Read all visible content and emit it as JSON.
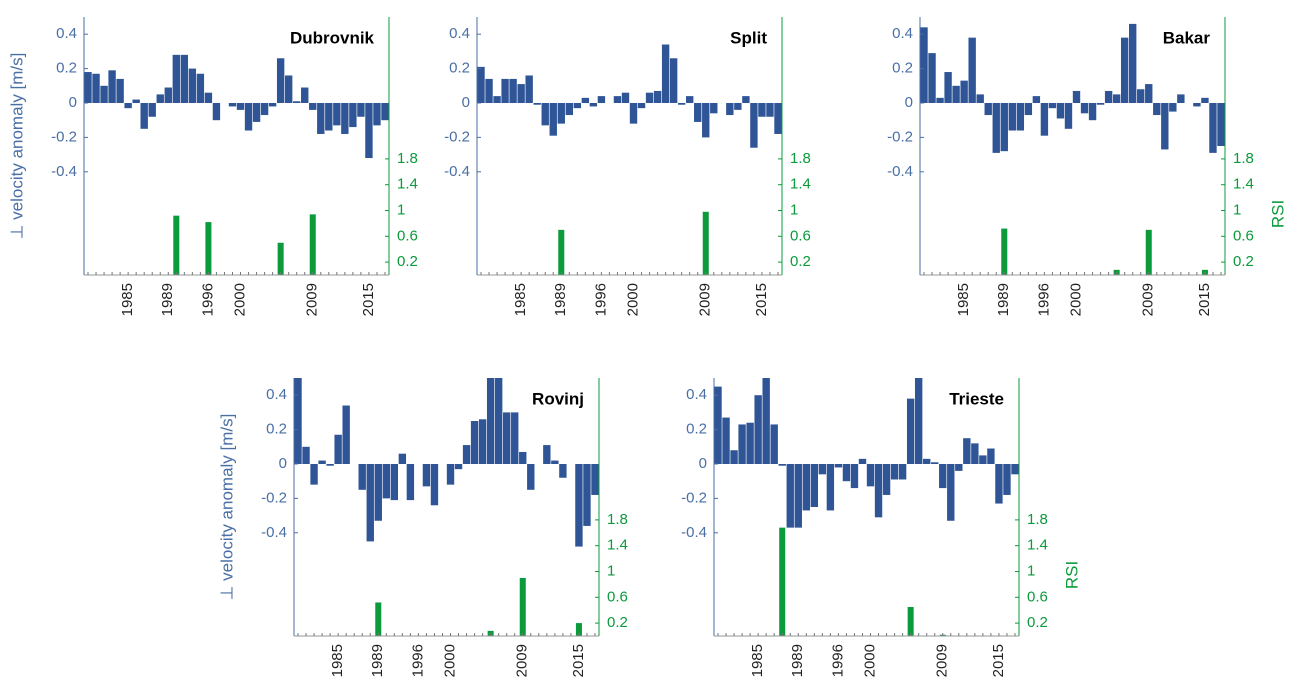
{
  "chart_data": [
    {
      "type": "bar",
      "title": "Dubrovnik",
      "ylabel": "⊥ velocity anomaly [m/s]",
      "categories": [
        null,
        null,
        null,
        null,
        null,
        "1985",
        null,
        null,
        null,
        null,
        "1989",
        null,
        null,
        null,
        null,
        "1996",
        null,
        null,
        null,
        "2000",
        null,
        null,
        null,
        null,
        null,
        null,
        null,
        null,
        "2009",
        null,
        null,
        null,
        null,
        null,
        null,
        "2015",
        null,
        null
      ],
      "series": [
        {
          "color": "#2f5597",
          "values": [
            0.18,
            0.17,
            0.1,
            0.19,
            0.14,
            -0.03,
            0.02,
            -0.15,
            -0.08,
            0.05,
            0.09,
            0.28,
            0.28,
            0.2,
            0.17,
            0.06,
            -0.1,
            0,
            -0.02,
            -0.04,
            -0.16,
            -0.11,
            -0.07,
            -0.02,
            0.26,
            0.16,
            0.01,
            0.09,
            -0.04,
            -0.18,
            -0.16,
            -0.13,
            -0.18,
            -0.14,
            -0.08,
            -0.32,
            -0.13,
            -0.1
          ]
        },
        {
          "color": "#0b9a3c",
          "axis": "y2",
          "values": [
            null,
            null,
            null,
            null,
            null,
            null,
            null,
            null,
            null,
            null,
            null,
            0.92,
            null,
            null,
            null,
            0.82,
            null,
            null,
            null,
            null,
            null,
            null,
            null,
            null,
            0.5,
            null,
            null,
            null,
            0.94,
            null,
            null,
            null,
            null,
            null,
            null,
            null,
            null,
            null
          ]
        }
      ],
      "ylim": [
        -1,
        0.5
      ],
      "yticks": [
        -0.4,
        -0.2,
        0,
        0.2,
        0.4
      ],
      "y2lim": [
        0,
        4
      ],
      "y2ticks": [
        0.2,
        0.6,
        1,
        1.4,
        1.8
      ]
    },
    {
      "type": "bar",
      "title": "Split",
      "categories": [
        null,
        null,
        null,
        null,
        null,
        "1985",
        null,
        null,
        null,
        null,
        "1989",
        null,
        null,
        null,
        null,
        "1996",
        null,
        null,
        null,
        "2000",
        null,
        null,
        null,
        null,
        null,
        null,
        null,
        null,
        "2009",
        null,
        null,
        null,
        null,
        null,
        null,
        "2015",
        null,
        null
      ],
      "series": [
        {
          "color": "#2f5597",
          "values": [
            0.21,
            0.14,
            0.04,
            0.14,
            0.14,
            0.11,
            0.16,
            -0.01,
            -0.13,
            -0.19,
            -0.12,
            -0.07,
            -0.03,
            0.03,
            -0.02,
            0.04,
            0,
            0.04,
            0.06,
            -0.12,
            -0.03,
            0.06,
            0.07,
            0.34,
            0.26,
            -0.01,
            0.04,
            -0.11,
            -0.2,
            -0.06,
            0,
            -0.07,
            -0.04,
            0.04,
            -0.26,
            -0.08,
            -0.08,
            -0.18
          ]
        },
        {
          "color": "#0b9a3c",
          "axis": "y2",
          "values": [
            null,
            null,
            null,
            null,
            null,
            null,
            null,
            null,
            null,
            null,
            0.7,
            null,
            null,
            null,
            null,
            null,
            null,
            null,
            null,
            null,
            null,
            null,
            null,
            null,
            null,
            null,
            null,
            null,
            0.98,
            null,
            null,
            null,
            null,
            null,
            null,
            null,
            null,
            null
          ]
        }
      ],
      "ylim": [
        -1,
        0.5
      ],
      "yticks": [
        -0.4,
        -0.2,
        0,
        0.2,
        0.4
      ],
      "y2lim": [
        0,
        4
      ],
      "y2ticks": [
        0.2,
        0.6,
        1,
        1.4,
        1.8
      ]
    },
    {
      "type": "bar",
      "title": "Bakar",
      "y2label": "RSI",
      "categories": [
        null,
        null,
        null,
        null,
        null,
        "1985",
        null,
        null,
        null,
        null,
        "1989",
        null,
        null,
        null,
        null,
        "1996",
        null,
        null,
        null,
        "2000",
        null,
        null,
        null,
        null,
        null,
        null,
        null,
        null,
        "2009",
        null,
        null,
        null,
        null,
        null,
        null,
        "2015",
        null,
        null
      ],
      "series": [
        {
          "color": "#2f5597",
          "values": [
            0.44,
            0.29,
            0.03,
            0.18,
            0.1,
            0.13,
            0.38,
            0.05,
            -0.07,
            -0.29,
            -0.28,
            -0.16,
            -0.16,
            -0.07,
            0.04,
            -0.19,
            -0.03,
            -0.09,
            -0.15,
            0.07,
            -0.06,
            -0.1,
            -0.01,
            0.07,
            0.05,
            0.38,
            0.46,
            0.08,
            0.11,
            -0.07,
            -0.27,
            -0.05,
            0.05,
            0,
            -0.02,
            0.03,
            -0.29,
            -0.25
          ]
        },
        {
          "color": "#0b9a3c",
          "axis": "y2",
          "values": [
            null,
            null,
            null,
            null,
            null,
            null,
            null,
            null,
            null,
            null,
            0.72,
            null,
            null,
            null,
            null,
            null,
            null,
            null,
            null,
            null,
            null,
            null,
            null,
            null,
            0.08,
            null,
            null,
            null,
            0.7,
            null,
            null,
            null,
            null,
            null,
            null,
            0.08,
            null,
            null
          ]
        }
      ],
      "ylim": [
        -1,
        0.5
      ],
      "yticks": [
        -0.4,
        -0.2,
        0,
        0.2,
        0.4
      ],
      "y2lim": [
        0,
        4
      ],
      "y2ticks": [
        0.2,
        0.6,
        1,
        1.4,
        1.8
      ]
    },
    {
      "type": "bar",
      "title": "Rovinj",
      "ylabel": "⊥ velocity anomaly [m/s]",
      "categories": [
        null,
        null,
        null,
        null,
        null,
        "1985",
        null,
        null,
        null,
        null,
        "1989",
        null,
        null,
        null,
        null,
        "1996",
        null,
        null,
        null,
        "2000",
        null,
        null,
        null,
        null,
        null,
        null,
        null,
        null,
        "2009",
        null,
        null,
        null,
        null,
        null,
        null,
        "2015",
        null,
        null
      ],
      "series": [
        {
          "color": "#2f5597",
          "values": [
            0.5,
            0.1,
            -0.12,
            0.02,
            -0.01,
            0.17,
            0.34,
            0,
            -0.15,
            -0.45,
            -0.33,
            -0.2,
            -0.21,
            0.06,
            -0.21,
            0,
            -0.13,
            -0.24,
            0,
            -0.12,
            -0.03,
            0.11,
            0.25,
            0.26,
            0.5,
            0.5,
            0.3,
            0.3,
            0.07,
            -0.15,
            0,
            0.11,
            0.02,
            -0.08,
            0,
            -0.48,
            -0.36,
            -0.18
          ]
        },
        {
          "color": "#0b9a3c",
          "axis": "y2",
          "values": [
            null,
            null,
            null,
            null,
            null,
            null,
            null,
            null,
            null,
            null,
            0.52,
            null,
            null,
            null,
            null,
            null,
            null,
            null,
            null,
            null,
            null,
            null,
            null,
            null,
            0.08,
            null,
            null,
            null,
            0.9,
            null,
            null,
            null,
            null,
            null,
            null,
            0.2,
            null,
            null
          ]
        }
      ],
      "ylim": [
        -1,
        0.5
      ],
      "yticks": [
        -0.4,
        -0.2,
        0,
        0.2,
        0.4
      ],
      "y2lim": [
        0,
        4
      ],
      "y2ticks": [
        0.2,
        0.6,
        1,
        1.4,
        1.8
      ]
    },
    {
      "type": "bar",
      "title": "Trieste",
      "y2label": "RSI",
      "categories": [
        null,
        null,
        null,
        null,
        null,
        "1985",
        null,
        null,
        null,
        null,
        "1989",
        null,
        null,
        null,
        null,
        "1996",
        null,
        null,
        null,
        "2000",
        null,
        null,
        null,
        null,
        null,
        null,
        null,
        null,
        "2009",
        null,
        null,
        null,
        null,
        null,
        null,
        "2015",
        null,
        null
      ],
      "series": [
        {
          "color": "#2f5597",
          "values": [
            0.45,
            0.27,
            0.08,
            0.23,
            0.24,
            0.4,
            0.5,
            0.23,
            -0.01,
            -0.37,
            -0.37,
            -0.27,
            -0.25,
            -0.06,
            -0.27,
            -0.02,
            -0.1,
            -0.14,
            0.03,
            -0.13,
            -0.31,
            -0.18,
            -0.09,
            -0.09,
            0.38,
            0.5,
            0.03,
            0.01,
            -0.14,
            -0.33,
            -0.04,
            0.15,
            0.12,
            0.05,
            0.09,
            -0.23,
            -0.18,
            -0.06
          ]
        },
        {
          "color": "#0b9a3c",
          "axis": "y2",
          "values": [
            null,
            null,
            null,
            null,
            null,
            null,
            null,
            null,
            1.68,
            null,
            null,
            null,
            null,
            null,
            null,
            null,
            null,
            null,
            null,
            null,
            null,
            null,
            null,
            null,
            0.45,
            null,
            null,
            null,
            0.02,
            null,
            null,
            null,
            null,
            null,
            null,
            null,
            null,
            null
          ]
        }
      ],
      "ylim": [
        -1,
        0.5
      ],
      "yticks": [
        -0.4,
        -0.2,
        0,
        0.2,
        0.4
      ],
      "y2lim": [
        0,
        4
      ],
      "y2ticks": [
        0.2,
        0.6,
        1,
        1.4,
        1.8
      ]
    }
  ]
}
